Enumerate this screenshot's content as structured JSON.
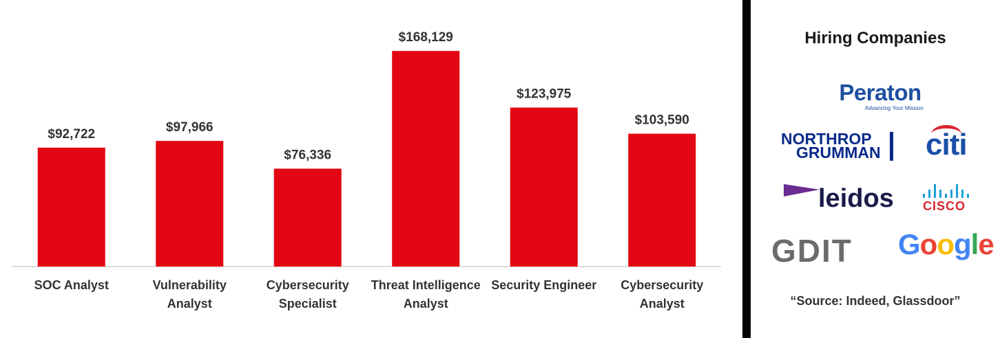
{
  "chart_data": {
    "type": "bar",
    "categories": [
      [
        "SOC Analyst"
      ],
      [
        "Vulnerability",
        "Analyst"
      ],
      [
        "Cybersecurity",
        "Specialist"
      ],
      [
        "Threat Intelligence",
        "Analyst"
      ],
      [
        "Security Engineer"
      ],
      [
        "Cybersecurity",
        "Analyst"
      ]
    ],
    "values": [
      92722,
      97966,
      76336,
      168129,
      123975,
      103590
    ],
    "data_labels": [
      "$92,722",
      "$97,966",
      "$76,336",
      "$168,129",
      "$123,975",
      "$103,590"
    ],
    "ylim": [
      0,
      180000
    ],
    "bar_color": "#e30613",
    "grid": false,
    "legend": "none"
  },
  "panel": {
    "title": "Hiring Companies",
    "source": "“Source: Indeed, Glassdoor”"
  },
  "logos": {
    "peraton": {
      "name": "Peraton",
      "tagline": "Advancing Your Mission"
    },
    "northrop": {
      "line1": "NORTHROP",
      "line2": "GRUMMAN"
    },
    "citi": {
      "name": "citi"
    },
    "leidos": {
      "name": "leidos"
    },
    "cisco": {
      "name": "CISCO"
    },
    "gdit": {
      "name": "GDIT"
    },
    "google": {
      "name": "Google"
    }
  },
  "colors": {
    "bar": "#e30613",
    "google": [
      "#4285F4",
      "#EA4335",
      "#FBBC05",
      "#4285F4",
      "#34A853",
      "#EA4335"
    ]
  }
}
